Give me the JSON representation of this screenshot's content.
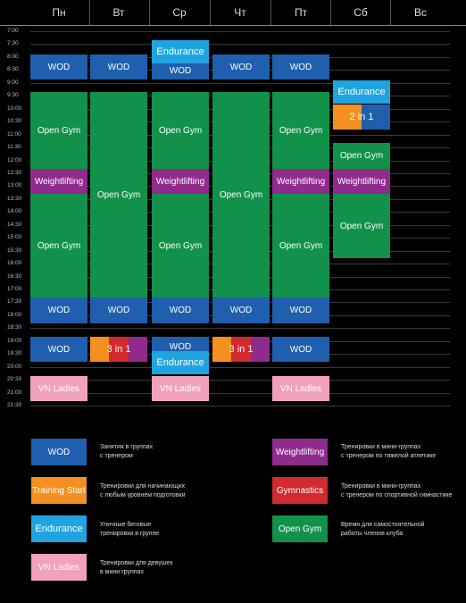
{
  "days": [
    "Пн",
    "Вт",
    "Ср",
    "Чт",
    "Пт",
    "Сб",
    "Вс"
  ],
  "times": [
    "7:00",
    "7:30",
    "8:00",
    "8:30",
    "9:00",
    "9:30",
    "10:00",
    "10:30",
    "11:00",
    "11:30",
    "12:00",
    "12:30",
    "13:00",
    "13:30",
    "14:00",
    "14:30",
    "15:00",
    "15:30",
    "16:00",
    "16:30",
    "17:00",
    "17:30",
    "18:00",
    "18:30",
    "19:00",
    "19:30",
    "20:00",
    "20:30",
    "21:00",
    "21:30"
  ],
  "colors": {
    "wod": "#1f5fad",
    "open_gym": "#12914a",
    "weightlifting": "#8e2b8c",
    "endurance": "#1fa4e0",
    "vn_ladies": "#f2a1bd",
    "training_start": "#f39020",
    "gymnastics": "#d12a2f"
  },
  "schedule": {
    "mon": {
      "wod_am": "WOD",
      "open_gym_1": "Open Gym",
      "weightlifting": "Weightlifting",
      "open_gym_2": "Open Gym",
      "wod_pm": "WOD",
      "wod_eve": "WOD",
      "vn_ladies": "VN Ladies"
    },
    "tue": {
      "wod_am": "WOD",
      "open_gym": "Open Gym",
      "wod_pm": "WOD",
      "three_in_one": "3 in 1"
    },
    "wed": {
      "endurance_am": "Endurance",
      "wod_am": "WOD",
      "open_gym_1": "Open Gym",
      "weightlifting": "Weightlifting",
      "open_gym_2": "Open Gym",
      "wod_pm": "WOD",
      "wod_eve": "WOD",
      "endurance_pm": "Endurance",
      "vn_ladies": "VN Ladies"
    },
    "thu": {
      "wod_am": "WOD",
      "open_gym": "Open Gym",
      "wod_pm": "WOD",
      "three_in_one": "3 in 1"
    },
    "fri": {
      "wod_am": "WOD",
      "open_gym_1": "Open Gym",
      "weightlifting": "Weightlifting",
      "open_gym_2": "Open Gym",
      "wod_pm": "WOD",
      "wod_eve": "WOD",
      "vn_ladies": "VN Ladies"
    },
    "sat": {
      "endurance": "Endurance",
      "two_in_one": "2 in 1",
      "open_gym_1": "Open Gym",
      "weightlifting": "Weightlifting",
      "open_gym_2": "Open Gym"
    }
  },
  "legend": [
    {
      "label": "WOD",
      "desc_1": "Занятия в группах",
      "desc_2": "с тренером"
    },
    {
      "label": "Training Start",
      "desc_1": "Тренировки для начинающих",
      "desc_2": "с любым уровнем подготовки"
    },
    {
      "label": "Endurance",
      "desc_1": "Уличные беговые",
      "desc_2": "тренировки в группе"
    },
    {
      "label": "VN Ladies",
      "desc_1": "Тренировки для девушек",
      "desc_2": "в мини группах"
    },
    {
      "label": "Weightlifting",
      "desc_1": "Тренировки в мини-группах",
      "desc_2": "с тренером по тяжелой атлетике"
    },
    {
      "label": "Gymnastics",
      "desc_1": "Тренировки в мини-группах",
      "desc_2": "с тренером по спортивной гимнастике"
    },
    {
      "label": "Open Gym",
      "desc_1": "Время для самостоятельной",
      "desc_2": "работы членов клуба"
    }
  ]
}
